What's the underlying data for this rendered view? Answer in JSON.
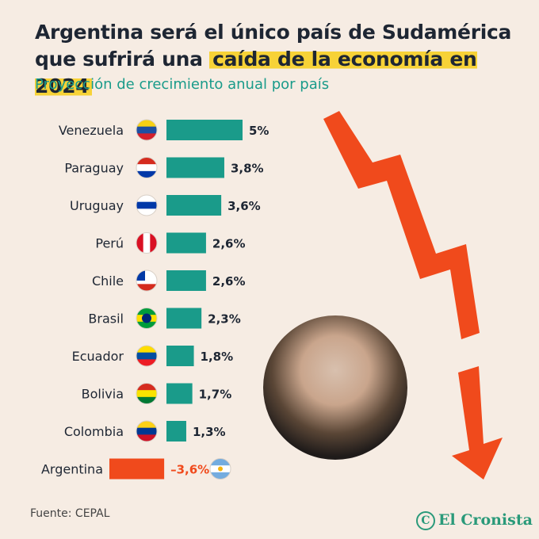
{
  "title_part1": "Argentina será el único país de Sudamérica que sufrirá una",
  "title_highlight": "caída de la economía en 2024",
  "subtitle": "Proyección de crecimiento anual por país",
  "source": "Fuente: CEPAL",
  "brand": "El Cronista",
  "colors": {
    "positive": "#1a9b8a",
    "negative": "#f04a1c",
    "arrow": "#f04a1c"
  },
  "chart_data": {
    "type": "bar",
    "orientation": "horizontal",
    "categories": [
      "Venezuela",
      "Paraguay",
      "Uruguay",
      "Perú",
      "Chile",
      "Brasil",
      "Ecuador",
      "Bolivia",
      "Colombia",
      "Argentina"
    ],
    "values": [
      5,
      3.8,
      3.6,
      2.6,
      2.6,
      2.3,
      1.8,
      1.7,
      1.3,
      -3.6
    ],
    "labels": [
      "5%",
      "3,8%",
      "3,6%",
      "2,6%",
      "2,6%",
      "2,3%",
      "1,8%",
      "1,7%",
      "1,3%",
      "–3,6%"
    ],
    "flags": [
      "flag-venezuela",
      "flag-paraguay",
      "flag-uruguay",
      "flag-peru",
      "flag-chile",
      "flag-brasil",
      "flag-ecuador",
      "flag-bolivia",
      "flag-colombia",
      "flag-argentina"
    ]
  }
}
